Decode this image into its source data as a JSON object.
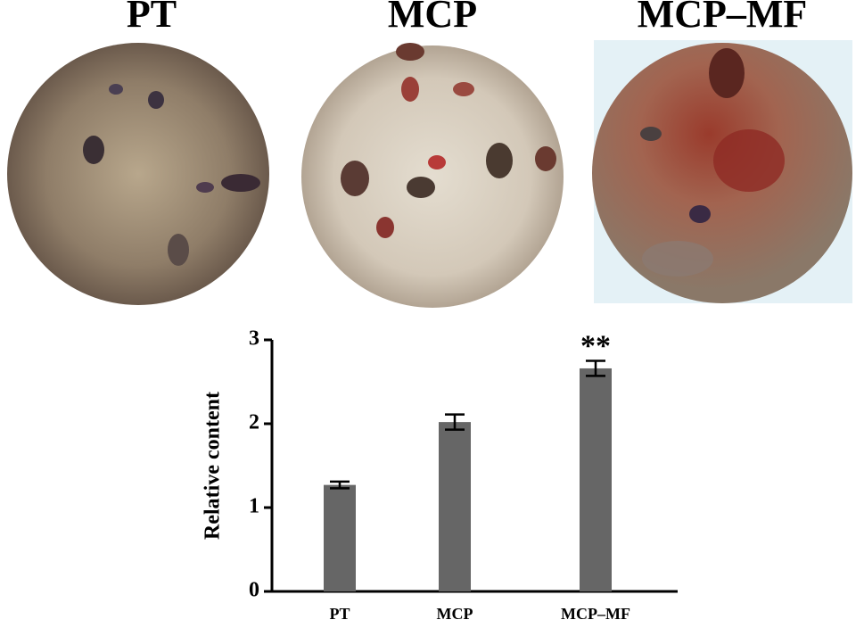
{
  "panels": [
    {
      "title": "PT"
    },
    {
      "title": "MCP"
    },
    {
      "title": "MCP–MF"
    }
  ],
  "chart_data": {
    "type": "bar",
    "ylabel": "Relative content",
    "categories": [
      "PT",
      "MCP",
      "MCP–MF"
    ],
    "values": [
      1.27,
      2.02,
      2.66
    ],
    "errors": [
      0.04,
      0.09,
      0.09
    ],
    "color": "#666666",
    "ylim": [
      0,
      3
    ],
    "yticks": [
      0,
      1,
      2,
      3
    ],
    "annotations": [
      {
        "text": "**",
        "x": "MCP–MF"
      }
    ]
  }
}
